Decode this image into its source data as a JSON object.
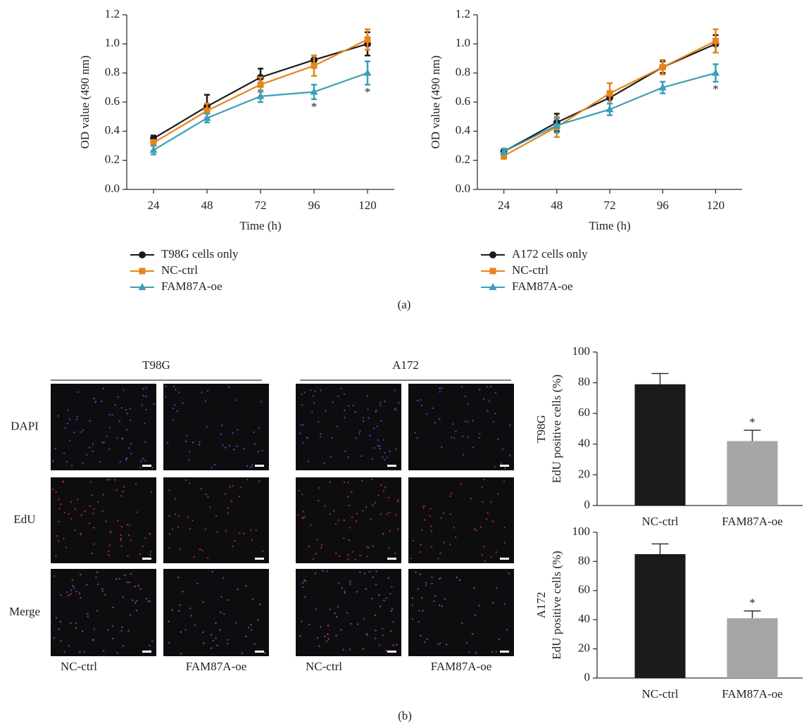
{
  "chart_data": [
    {
      "type": "line",
      "xlabel": "Time (h)",
      "ylabel": "OD value (490 nm)",
      "x": [
        24,
        48,
        72,
        96,
        120
      ],
      "series": [
        {
          "name": "T98G cells only",
          "color": "#1a1a1a",
          "marker": "circle",
          "values": [
            0.35,
            0.57,
            0.77,
            0.89,
            1.0
          ],
          "error": [
            0.02,
            0.08,
            0.06,
            0.03,
            0.08
          ]
        },
        {
          "name": "NC-ctrl",
          "color": "#e8841a",
          "marker": "square",
          "values": [
            0.32,
            0.54,
            0.72,
            0.85,
            1.03
          ],
          "error": [
            0.02,
            0.05,
            0.05,
            0.07,
            0.07
          ]
        },
        {
          "name": "FAM87A-oe",
          "color": "#3aa0b8",
          "marker": "triangle",
          "values": [
            0.27,
            0.49,
            0.64,
            0.67,
            0.8
          ],
          "error": [
            0.03,
            0.03,
            0.04,
            0.05,
            0.08
          ]
        }
      ],
      "xlim": [
        12,
        132
      ],
      "xticks": [
        24,
        48,
        72,
        96,
        120
      ],
      "ylim": [
        0,
        1.2
      ],
      "yticks": [
        {
          "value": 0,
          "label": "0.0"
        },
        0.2,
        0.4,
        0.6,
        0.8,
        {
          "value": 1,
          "label": "1.0"
        },
        1.2
      ],
      "annotations": [
        {
          "x": 96,
          "text": "*"
        },
        {
          "x": 120,
          "text": "*"
        }
      ]
    },
    {
      "type": "line",
      "xlabel": "Time (h)",
      "ylabel": "OD value (490 nm)",
      "x": [
        24,
        48,
        72,
        96,
        120
      ],
      "series": [
        {
          "name": "A172 cells only",
          "color": "#1a1a1a",
          "marker": "circle",
          "values": [
            0.26,
            0.46,
            0.63,
            0.84,
            1.0
          ],
          "error": [
            0.02,
            0.06,
            0.04,
            0.04,
            0.06
          ]
        },
        {
          "name": "NC-ctrl",
          "color": "#e8841a",
          "marker": "square",
          "values": [
            0.23,
            0.43,
            0.66,
            0.84,
            1.02
          ],
          "error": [
            0.02,
            0.07,
            0.07,
            0.05,
            0.08
          ]
        },
        {
          "name": "FAM87A-oe",
          "color": "#3aa0b8",
          "marker": "triangle",
          "values": [
            0.26,
            0.44,
            0.55,
            0.7,
            0.8
          ],
          "error": [
            0.02,
            0.05,
            0.04,
            0.04,
            0.06
          ]
        }
      ],
      "xlim": [
        12,
        132
      ],
      "xticks": [
        24,
        48,
        72,
        96,
        120
      ],
      "ylim": [
        0,
        1.2
      ],
      "yticks": [
        {
          "value": 0,
          "label": "0.0"
        },
        0.2,
        0.4,
        0.6,
        0.8,
        {
          "value": 1,
          "label": "1.0"
        },
        1.2
      ],
      "annotations": [
        {
          "x": 120,
          "text": "*"
        }
      ]
    },
    {
      "type": "bar",
      "ylabel": [
        "T98G",
        "EdU positive cells (%)"
      ],
      "categories": [
        "NC-ctrl",
        "FAM87A-oe"
      ],
      "values": [
        79,
        42
      ],
      "error": [
        7,
        7
      ],
      "colors": [
        "#1a1a1a",
        "#a6a6a6"
      ],
      "ylim": [
        0,
        100
      ],
      "yticks": [
        0,
        20,
        40,
        60,
        80,
        100
      ],
      "annotations": [
        {
          "x": "FAM87A-oe",
          "text": "*"
        }
      ]
    },
    {
      "type": "bar",
      "ylabel": [
        "A172",
        "EdU positive cells (%)"
      ],
      "categories": [
        "NC-ctrl",
        "FAM87A-oe"
      ],
      "values": [
        85,
        41
      ],
      "error": [
        7,
        5
      ],
      "colors": [
        "#1a1a1a",
        "#a6a6a6"
      ],
      "ylim": [
        0,
        100
      ],
      "yticks": [
        0,
        20,
        40,
        60,
        80,
        100
      ],
      "annotations": [
        {
          "x": "FAM87A-oe",
          "text": "*"
        }
      ]
    }
  ],
  "figure": {
    "panel_a": "(a)",
    "panel_b": "(b)",
    "micrographs": {
      "groups": [
        "T98G",
        "A172"
      ],
      "rows": [
        "DAPI",
        "EdU",
        "Merge"
      ],
      "columns": [
        "NC-ctrl",
        "FAM87A-oe",
        "NC-ctrl",
        "FAM87A-oe"
      ]
    }
  }
}
